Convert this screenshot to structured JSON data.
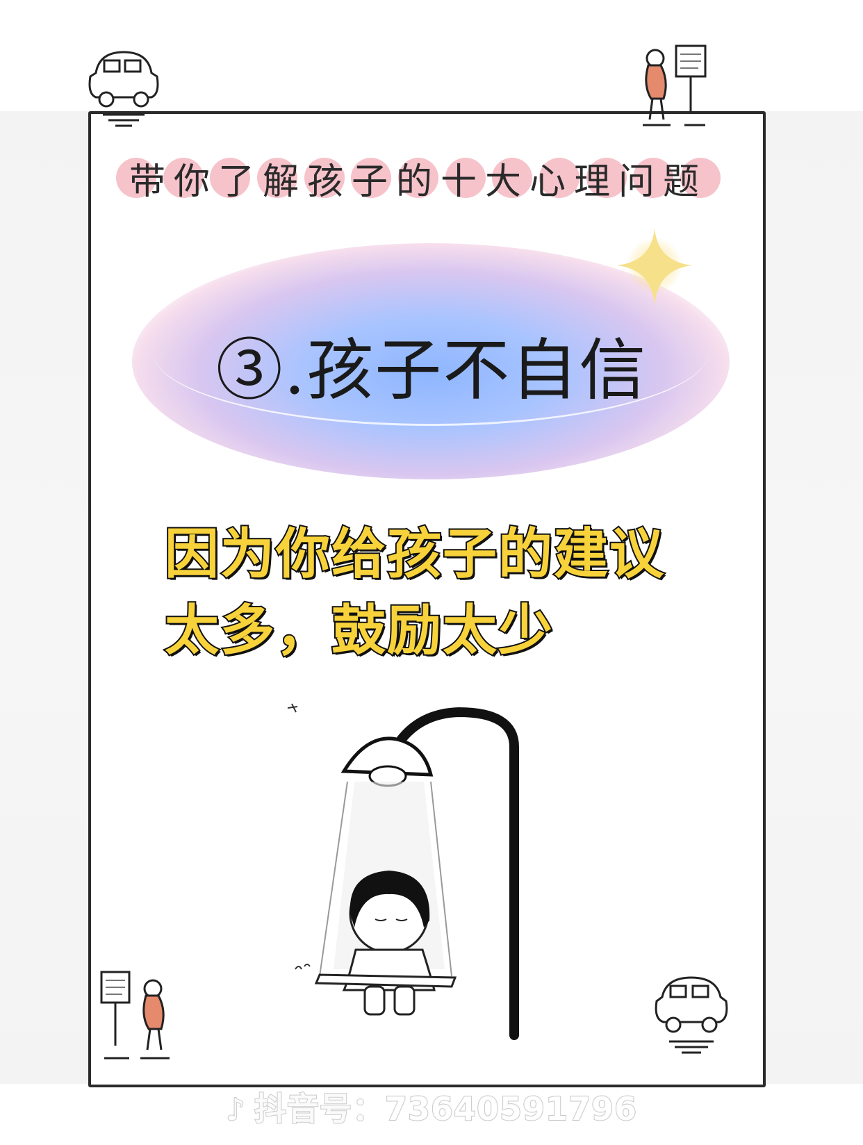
{
  "header": {
    "title": "带你了解孩子的十大心理问题"
  },
  "main_title": "③.孩子不自信",
  "body": {
    "line1": "因为你给孩子的建议",
    "line2": "太多，鼓励太少"
  },
  "watermark": {
    "icon": "tiktok-note-icon",
    "text": "抖音号：73640591796"
  },
  "colors": {
    "frame": "#2b2b2b",
    "heart": "#f5b9c2",
    "glow_blue": "#8fb6ff",
    "highlight_yellow": "#f7d23a"
  }
}
